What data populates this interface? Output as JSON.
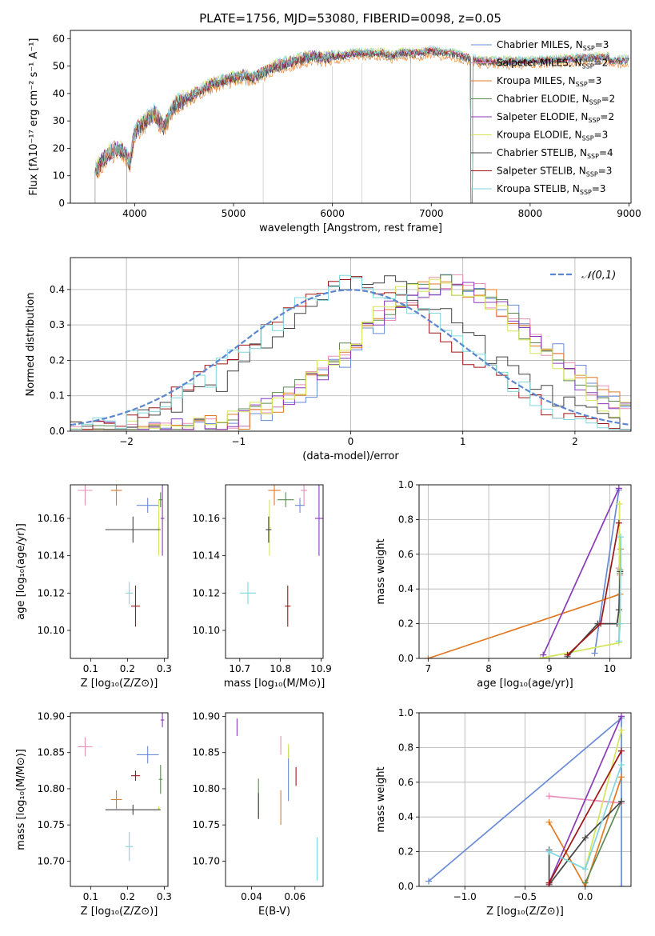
{
  "figure": {
    "title": "PLATE=1756, MJD=53080, FIBERID=0098, z=0.05"
  },
  "series": [
    {
      "name": "Chabrier MILES",
      "nssp": "3",
      "color": "#6a8bd6"
    },
    {
      "name": "Salpeter MILES",
      "nssp": "2",
      "color": "#e88fb8"
    },
    {
      "name": "Kroupa MILES",
      "nssp": "3",
      "color": "#e07a26"
    },
    {
      "name": "Chabrier ELODIE",
      "nssp": "2",
      "color": "#5d8a52"
    },
    {
      "name": "Salpeter ELODIE",
      "nssp": "2",
      "color": "#8a3ab9"
    },
    {
      "name": "Kroupa ELODIE",
      "nssp": "3",
      "color": "#d6e45a"
    },
    {
      "name": "Chabrier STELIB",
      "nssp": "4",
      "color": "#444444"
    },
    {
      "name": "Salpeter STELIB",
      "nssp": "3",
      "color": "#a01515"
    },
    {
      "name": "Kroupa STELIB",
      "nssp": "3",
      "color": "#7fd6dc"
    }
  ],
  "chart_data": [
    {
      "id": "spectrum",
      "type": "line",
      "xlabel": "wavelength [Angstrom, rest frame]",
      "ylabel": "Flux [fλ10⁻¹⁷ erg cm⁻² s⁻¹ A⁻¹]",
      "xlim": [
        3350,
        9020
      ],
      "ylim": [
        0,
        63
      ],
      "xticks": [
        4000,
        5000,
        6000,
        7000,
        8000,
        9000
      ],
      "yticks": [
        0,
        10,
        20,
        30,
        40,
        50,
        60
      ],
      "legend": "right",
      "continuum": [
        [
          3600,
          12
        ],
        [
          3700,
          17
        ],
        [
          3800,
          20
        ],
        [
          3900,
          19
        ],
        [
          3950,
          15
        ],
        [
          4000,
          26
        ],
        [
          4100,
          30
        ],
        [
          4200,
          33
        ],
        [
          4300,
          28
        ],
        [
          4400,
          36
        ],
        [
          4500,
          38
        ],
        [
          4600,
          40
        ],
        [
          4700,
          42
        ],
        [
          4800,
          44
        ],
        [
          4900,
          45
        ],
        [
          5000,
          46
        ],
        [
          5100,
          47
        ],
        [
          5200,
          46
        ],
        [
          5300,
          48
        ],
        [
          5400,
          50
        ],
        [
          5500,
          51
        ],
        [
          5600,
          52
        ],
        [
          5700,
          53
        ],
        [
          5800,
          54
        ],
        [
          5900,
          53
        ],
        [
          6000,
          54
        ],
        [
          6100,
          54
        ],
        [
          6200,
          55
        ],
        [
          6300,
          55
        ],
        [
          6400,
          55
        ],
        [
          6500,
          55
        ],
        [
          6600,
          54
        ],
        [
          6700,
          55
        ],
        [
          6800,
          55
        ],
        [
          6900,
          55
        ],
        [
          7000,
          56
        ],
        [
          7100,
          55
        ],
        [
          7200,
          55
        ],
        [
          7300,
          54
        ],
        [
          7400,
          53
        ],
        [
          7500,
          52
        ],
        [
          7700,
          52
        ],
        [
          8000,
          52
        ],
        [
          8500,
          53
        ],
        [
          9000,
          54
        ]
      ],
      "dropouts": [
        3600,
        3920,
        6790,
        7400
      ]
    },
    {
      "id": "residuals",
      "type": "histogram",
      "xlabel": "(data-model)/error",
      "ylabel": "Normed distribution",
      "xlim": [
        -2.5,
        2.5
      ],
      "ylim": [
        0,
        0.49
      ],
      "xticks": [
        -2,
        -1,
        0,
        1,
        2
      ],
      "yticks": [
        0.0,
        0.1,
        0.2,
        0.3,
        0.4
      ],
      "legend_label": "𝒩(0,1)",
      "legend": "upper right",
      "reference": {
        "mu": 0,
        "sigma": 1,
        "color": "#5b87d0"
      },
      "groups": [
        {
          "center": 0.35,
          "sigma": 0.95,
          "peak": 0.4,
          "members": [
            6,
            7,
            8
          ]
        },
        {
          "center": 0.85,
          "sigma": 0.85,
          "peak": 0.43,
          "members": [
            0,
            1,
            2,
            3,
            4,
            5
          ]
        }
      ]
    },
    {
      "id": "age-vs-Z",
      "type": "errorbar",
      "xlabel": "Z [log₁₀(Z/Z⊙)]",
      "ylabel": "age  [log₁₀(age/yr)]",
      "xlim": [
        0.045,
        0.31
      ],
      "ylim": [
        10.085,
        10.178
      ],
      "xticks": [
        0.1,
        0.2,
        0.3
      ],
      "yticks": [
        10.1,
        10.12,
        10.14,
        10.16
      ],
      "points": [
        {
          "s": 0,
          "x": 0.255,
          "y": 10.167,
          "xe": 0.03,
          "ye": 0.004
        },
        {
          "s": 1,
          "x": 0.085,
          "y": 10.175,
          "xe": 0.02,
          "ye": 0.008
        },
        {
          "s": 2,
          "x": 0.17,
          "y": 10.175,
          "xe": 0.015,
          "ye": 0.008
        },
        {
          "s": 3,
          "x": 0.29,
          "y": 10.17,
          "xe": 0.005,
          "ye": 0.004
        },
        {
          "s": 4,
          "x": 0.295,
          "y": 10.16,
          "xe": 0.005,
          "ye": 0.02
        },
        {
          "s": 5,
          "x": 0.285,
          "y": 10.155,
          "xe": 0.003,
          "ye": 0.015
        },
        {
          "s": 6,
          "x": 0.215,
          "y": 10.154,
          "xe": 0.075,
          "ye": 0.007
        },
        {
          "s": 7,
          "x": 0.222,
          "y": 10.113,
          "xe": 0.012,
          "ye": 0.011
        },
        {
          "s": 8,
          "x": 0.205,
          "y": 10.12,
          "xe": 0.01,
          "ye": 0.006
        }
      ]
    },
    {
      "id": "age-vs-mass",
      "type": "errorbar",
      "xlabel": "mass [log₁₀(M/M⊙)]",
      "ylabel": "",
      "xlim": [
        10.665,
        10.905
      ],
      "ylim": [
        10.085,
        10.178
      ],
      "xticks": [
        10.7,
        10.8,
        10.9
      ],
      "yticks": [
        10.1,
        10.12,
        10.14,
        10.16
      ],
      "points": [
        {
          "s": 0,
          "x": 10.848,
          "y": 10.167,
          "xe": 0.012,
          "ye": 0.004
        },
        {
          "s": 1,
          "x": 10.858,
          "y": 10.175,
          "xe": 0.008,
          "ye": 0.008
        },
        {
          "s": 2,
          "x": 10.785,
          "y": 10.175,
          "xe": 0.015,
          "ye": 0.008
        },
        {
          "s": 3,
          "x": 10.813,
          "y": 10.17,
          "xe": 0.02,
          "ye": 0.004
        },
        {
          "s": 4,
          "x": 10.895,
          "y": 10.16,
          "xe": 0.01,
          "ye": 0.02
        },
        {
          "s": 5,
          "x": 10.773,
          "y": 10.155,
          "xe": 0.003,
          "ye": 0.015
        },
        {
          "s": 6,
          "x": 10.771,
          "y": 10.154,
          "xe": 0.007,
          "ye": 0.007
        },
        {
          "s": 7,
          "x": 10.818,
          "y": 10.113,
          "xe": 0.007,
          "ye": 0.011
        },
        {
          "s": 8,
          "x": 10.72,
          "y": 10.12,
          "xe": 0.02,
          "ye": 0.006
        }
      ]
    },
    {
      "id": "weight-vs-age",
      "type": "line",
      "xlabel": "age  [log₁₀(age/yr)]",
      "ylabel": "mass weight",
      "xlim": [
        6.85,
        10.35
      ],
      "ylim": [
        0,
        1
      ],
      "xticks": [
        7,
        8,
        9,
        10
      ],
      "yticks": [
        0.0,
        0.2,
        0.4,
        0.6,
        0.8,
        1.0
      ],
      "lines": [
        {
          "s": 0,
          "pts": [
            [
              9.75,
              0.03
            ],
            [
              10.15,
              0.97
            ]
          ]
        },
        {
          "s": 1,
          "pts": [
            [
              10.15,
              0.52
            ],
            [
              10.17,
              0.48
            ]
          ]
        },
        {
          "s": 2,
          "pts": [
            [
              7.0,
              0.0
            ],
            [
              10.17,
              0.37
            ],
            [
              10.18,
              0.63
            ]
          ]
        },
        {
          "s": 3,
          "pts": [
            [
              10.17,
              0.49
            ],
            [
              10.17,
              0.51
            ]
          ]
        },
        {
          "s": 4,
          "pts": [
            [
              8.9,
              0.02
            ],
            [
              10.15,
              0.98
            ]
          ]
        },
        {
          "s": 5,
          "pts": [
            [
              8.85,
              0.0
            ],
            [
              10.15,
              0.09
            ],
            [
              10.16,
              0.89
            ]
          ]
        },
        {
          "s": 6,
          "pts": [
            [
              9.3,
              0.01
            ],
            [
              9.8,
              0.2
            ],
            [
              10.12,
              0.2
            ],
            [
              10.15,
              0.28
            ],
            [
              10.17,
              0.5
            ]
          ]
        },
        {
          "s": 7,
          "pts": [
            [
              9.3,
              0.02
            ],
            [
              9.85,
              0.2
            ],
            [
              10.15,
              0.78
            ]
          ]
        },
        {
          "s": 8,
          "pts": [
            [
              10.15,
              0.1
            ],
            [
              10.17,
              0.2
            ],
            [
              10.18,
              0.7
            ]
          ]
        }
      ]
    },
    {
      "id": "mass-vs-Z",
      "type": "errorbar",
      "xlabel": "Z [log₁₀(Z/Z⊙)]",
      "ylabel": "mass [log₁₀(M/M⊙)]",
      "xlim": [
        0.045,
        0.31
      ],
      "ylim": [
        10.665,
        10.905
      ],
      "xticks": [
        0.1,
        0.2,
        0.3
      ],
      "yticks": [
        10.7,
        10.75,
        10.8,
        10.85,
        10.9
      ],
      "points": [
        {
          "s": 0,
          "x": 0.255,
          "y": 10.847,
          "xe": 0.03,
          "ye": 0.012
        },
        {
          "s": 1,
          "x": 0.085,
          "y": 10.858,
          "xe": 0.02,
          "ye": 0.013
        },
        {
          "s": 2,
          "x": 0.17,
          "y": 10.785,
          "xe": 0.015,
          "ye": 0.013
        },
        {
          "s": 3,
          "x": 0.29,
          "y": 10.813,
          "xe": 0.005,
          "ye": 0.02
        },
        {
          "s": 4,
          "x": 0.295,
          "y": 10.895,
          "xe": 0.005,
          "ye": 0.01
        },
        {
          "s": 5,
          "x": 0.285,
          "y": 10.773,
          "xe": 0.003,
          "ye": 0.003
        },
        {
          "s": 6,
          "x": 0.215,
          "y": 10.771,
          "xe": 0.075,
          "ye": 0.007
        },
        {
          "s": 7,
          "x": 0.222,
          "y": 10.818,
          "xe": 0.012,
          "ye": 0.007
        },
        {
          "s": 8,
          "x": 0.205,
          "y": 10.72,
          "xe": 0.01,
          "ye": 0.02
        }
      ]
    },
    {
      "id": "mass-vs-ebv",
      "type": "errorbar",
      "xlabel": "E(B-V)",
      "ylabel": "",
      "xlim": [
        0.028,
        0.073
      ],
      "ylim": [
        10.665,
        10.905
      ],
      "xticks": [
        0.04,
        0.06
      ],
      "yticks": [
        10.7,
        10.75,
        10.8,
        10.85,
        10.9
      ],
      "points": [
        {
          "s": 0,
          "x": 0.057,
          "y": 10.82,
          "xe": 0.0,
          "ye": 0.037
        },
        {
          "s": 1,
          "x": 0.0535,
          "y": 10.86,
          "xe": 0.0,
          "ye": 0.013
        },
        {
          "s": 2,
          "x": 0.0535,
          "y": 10.774,
          "xe": 0.0,
          "ye": 0.024
        },
        {
          "s": 3,
          "x": 0.0432,
          "y": 10.787,
          "xe": 0.0,
          "ye": 0.027
        },
        {
          "s": 4,
          "x": 0.0333,
          "y": 10.885,
          "xe": 0.0,
          "ye": 0.012
        },
        {
          "s": 5,
          "x": 0.057,
          "y": 10.852,
          "xe": 0.0,
          "ye": 0.01
        },
        {
          "s": 6,
          "x": 0.0432,
          "y": 10.776,
          "xe": 0.0,
          "ye": 0.018
        },
        {
          "s": 7,
          "x": 0.0605,
          "y": 10.817,
          "xe": 0.0,
          "ye": 0.013
        },
        {
          "s": 8,
          "x": 0.0702,
          "y": 10.703,
          "xe": 0.0,
          "ye": 0.03
        }
      ]
    },
    {
      "id": "weight-vs-Z",
      "type": "line",
      "xlabel": "Z [log₁₀(Z/Z⊙)]",
      "ylabel": "mass weight",
      "xlim": [
        -1.38,
        0.38
      ],
      "ylim": [
        0,
        1
      ],
      "xticks": [
        -1.0,
        -0.5,
        0.0
      ],
      "yticks": [
        0.0,
        0.2,
        0.4,
        0.6,
        0.8,
        1.0
      ],
      "lines": [
        {
          "s": 0,
          "pts": [
            [
              -1.3,
              0.03
            ],
            [
              0.3,
              0.97
            ],
            [
              0.3,
              0.0
            ]
          ]
        },
        {
          "s": 1,
          "pts": [
            [
              -0.3,
              0.52
            ],
            [
              0.3,
              0.48
            ]
          ]
        },
        {
          "s": 2,
          "pts": [
            [
              -0.3,
              0.37
            ],
            [
              0.0,
              0.0
            ],
            [
              0.3,
              0.63
            ]
          ]
        },
        {
          "s": 3,
          "pts": [
            [
              0.0,
              0.02
            ],
            [
              0.3,
              0.49
            ]
          ]
        },
        {
          "s": 4,
          "pts": [
            [
              -0.3,
              0.02
            ],
            [
              0.3,
              0.98
            ]
          ]
        },
        {
          "s": 5,
          "pts": [
            [
              0.0,
              0.1
            ],
            [
              0.3,
              0.9
            ]
          ]
        },
        {
          "s": 6,
          "pts": [
            [
              -0.3,
              0.21
            ],
            [
              -0.3,
              0.01
            ],
            [
              0.0,
              0.28
            ],
            [
              0.3,
              0.49
            ]
          ]
        },
        {
          "s": 7,
          "pts": [
            [
              -0.3,
              0.02
            ],
            [
              0.3,
              0.78
            ]
          ]
        },
        {
          "s": 8,
          "pts": [
            [
              -0.3,
              0.2
            ],
            [
              0.0,
              0.1
            ],
            [
              0.3,
              0.7
            ]
          ]
        }
      ]
    }
  ]
}
